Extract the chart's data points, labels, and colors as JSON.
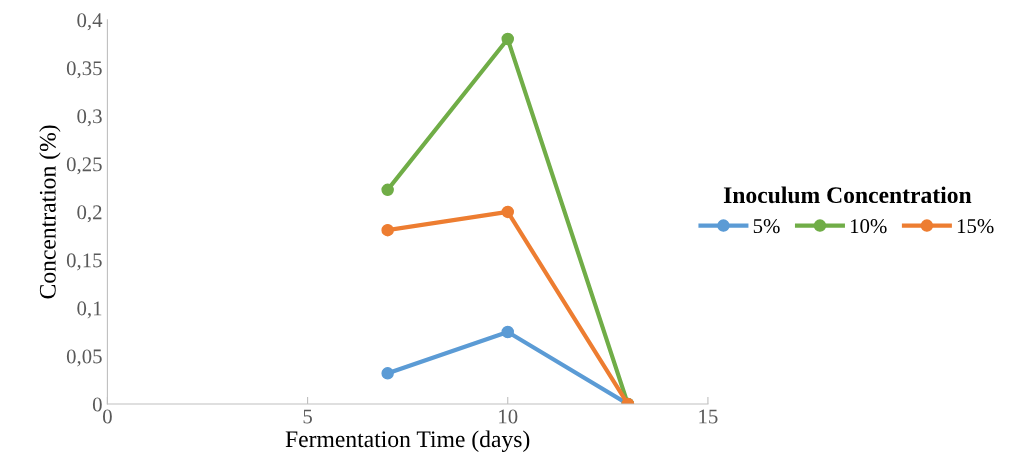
{
  "chart_data": {
    "type": "line",
    "xlabel": "Fermentation Time (days)",
    "ylabel": "Concentration (%)",
    "legend_title": "Inoculum Concentration",
    "legend": "right",
    "marker": "circle",
    "line_style": "solid",
    "grid": false,
    "x": [
      7,
      10,
      13
    ],
    "series": [
      {
        "name": "5%",
        "color": "#5b9bd5",
        "values": [
          0.032,
          0.075,
          0
        ]
      },
      {
        "name": "10%",
        "color": "#70ad47",
        "values": [
          0.223,
          0.38,
          0
        ]
      },
      {
        "name": "15%",
        "color": "#ed7d31",
        "values": [
          0.181,
          0.2,
          0
        ]
      }
    ],
    "xlim": [
      0,
      15
    ],
    "xticks": [
      0,
      5,
      10,
      15
    ],
    "ylim": [
      0,
      0.4
    ],
    "yticks": [
      0,
      {
        "value": 0.05,
        "label": "0,05"
      },
      {
        "value": 0.1,
        "label": "0,1"
      },
      {
        "value": 0.15,
        "label": "0,15"
      },
      {
        "value": 0.2,
        "label": "0,2"
      },
      {
        "value": 0.25,
        "label": "0,25"
      },
      {
        "value": 0.3,
        "label": "0,3"
      },
      {
        "value": 0.35,
        "label": "0,35"
      },
      {
        "value": 0.4,
        "label": "0,4"
      }
    ]
  }
}
